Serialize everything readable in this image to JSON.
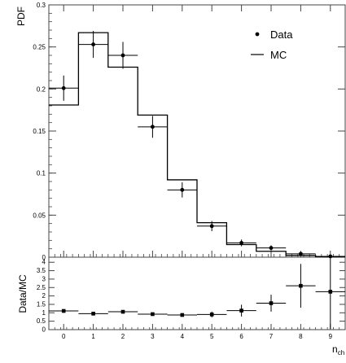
{
  "chart_data": [
    {
      "type": "histogram",
      "role": "main",
      "xlabel": "n",
      "xlabel_subscript": "ch",
      "ylabel": "PDF",
      "xlim": [
        -0.5,
        9.5
      ],
      "ylim": [
        0,
        0.3
      ],
      "yticks": [
        "0",
        "0.05",
        "0.1",
        "0.15",
        "0.2",
        "0.25",
        "0.3"
      ],
      "legend_position": "top-right",
      "series": [
        {
          "name": "Data",
          "style": "points-with-error-bars",
          "x": [
            0,
            1,
            2,
            3,
            4,
            5,
            6,
            7,
            8,
            9
          ],
          "values": [
            0.201,
            0.253,
            0.24,
            0.155,
            0.08,
            0.037,
            0.017,
            0.011,
            0.004,
            0.001
          ],
          "errors": [
            0.015,
            0.016,
            0.016,
            0.013,
            0.009,
            0.006,
            0.004,
            0.003,
            0.002,
            0.001
          ]
        },
        {
          "name": "MC",
          "style": "step",
          "x": [
            0,
            1,
            2,
            3,
            4,
            5,
            6,
            7,
            8,
            9
          ],
          "values": [
            0.181,
            0.267,
            0.226,
            0.169,
            0.092,
            0.041,
            0.015,
            0.007,
            0.002,
            0.0005
          ]
        }
      ]
    },
    {
      "type": "scatter",
      "role": "ratio",
      "ylabel": "Data/MC",
      "xlim": [
        -0.5,
        9.5
      ],
      "ylim": [
        0,
        4.3
      ],
      "yticks": [
        "0",
        "0.5",
        "1",
        "1.5",
        "2",
        "2.5",
        "3",
        "3.5",
        "4"
      ],
      "xticks": [
        "0",
        "1",
        "2",
        "3",
        "4",
        "5",
        "6",
        "7",
        "8",
        "9"
      ],
      "series": [
        {
          "x": [
            0,
            1,
            2,
            3,
            4,
            5,
            6,
            7,
            8,
            9
          ],
          "values": [
            1.11,
            0.95,
            1.06,
            0.92,
            0.87,
            0.9,
            1.13,
            1.57,
            2.6,
            2.25
          ],
          "errors": [
            0.1,
            0.08,
            0.1,
            0.09,
            0.1,
            0.17,
            0.35,
            0.5,
            1.3,
            2.2
          ]
        }
      ]
    }
  ]
}
